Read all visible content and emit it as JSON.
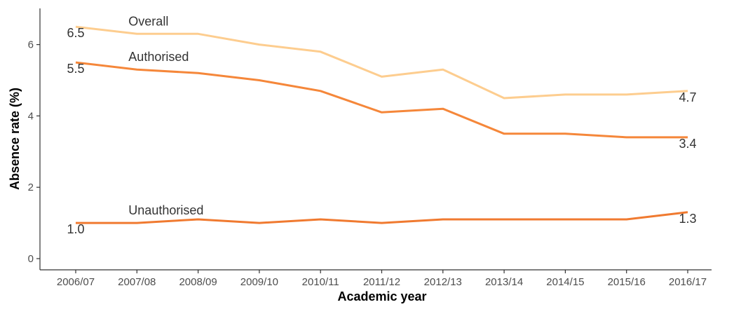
{
  "chart_data": {
    "type": "line",
    "xlabel": "Academic year",
    "ylabel": "Absence rate (%)",
    "ylim": [
      0,
      7
    ],
    "yticks": [
      0,
      2,
      4,
      6
    ],
    "grid": false,
    "categories": [
      "2006/07",
      "2007/08",
      "2008/09",
      "2009/10",
      "2010/11",
      "2011/12",
      "2012/13",
      "2013/14",
      "2014/15",
      "2015/16",
      "2016/17"
    ],
    "series": [
      {
        "name": "Overall",
        "color": "#fdcd8f",
        "values": [
          6.5,
          6.3,
          6.3,
          6.0,
          5.8,
          5.1,
          5.3,
          4.5,
          4.6,
          4.6,
          4.7
        ],
        "start_label": "6.5",
        "end_label": "4.7"
      },
      {
        "name": "Authorised",
        "color": "#f5873a",
        "values": [
          5.5,
          5.3,
          5.2,
          5.0,
          4.7,
          4.1,
          4.2,
          3.5,
          3.5,
          3.4,
          3.4
        ],
        "start_label": "5.5",
        "end_label": "3.4"
      },
      {
        "name": "Unauthorised",
        "color": "#f07a30",
        "values": [
          1.0,
          1.0,
          1.1,
          1.0,
          1.1,
          1.0,
          1.1,
          1.1,
          1.1,
          1.1,
          1.3
        ],
        "start_label": "1.0",
        "end_label": "1.3"
      }
    ]
  }
}
